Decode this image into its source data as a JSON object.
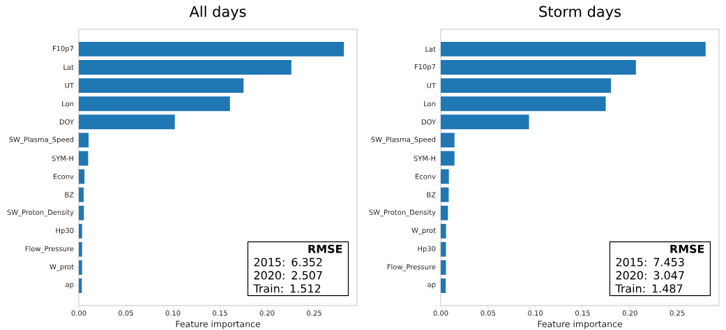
{
  "chart_data": [
    {
      "type": "bar",
      "orientation": "horizontal",
      "title": "All days",
      "xlabel": "Feature importance",
      "color": "#1f77b4",
      "categories": [
        "F10p7",
        "Lat",
        "UT",
        "Lon",
        "DOY",
        "SW_Plasma_Speed",
        "SYM-H",
        "Econv",
        "BZ",
        "SW_Proton_Density",
        "Hp30",
        "Flow_Pressure",
        "W_prot",
        "ap"
      ],
      "values": [
        0.2816,
        0.2258,
        0.175,
        0.1606,
        0.102,
        0.0104,
        0.0099,
        0.006,
        0.0052,
        0.0054,
        0.0035,
        0.0035,
        0.0035,
        0.0032
      ],
      "xlim": [
        0,
        0.2956
      ],
      "xticks": [
        {
          "value": 0,
          "label": "0.00"
        },
        {
          "value": 0.05,
          "label": "0.05"
        },
        {
          "value": 0.1,
          "label": "0.10"
        },
        {
          "value": 0.15,
          "label": "0.15"
        },
        {
          "value": 0.2,
          "label": "0.20"
        },
        {
          "value": 0.25,
          "label": "0.25"
        }
      ],
      "annotations": [
        "RMSE",
        "2015:   6.352",
        "2020:   2.507",
        "Train:   1.512"
      ]
    },
    {
      "type": "bar",
      "orientation": "horizontal",
      "title": "Storm days",
      "xlabel": "Feature importance",
      "color": "#1f77b4",
      "categories": [
        "Lat",
        "F10p7",
        "UT",
        "Lon",
        "DOY",
        "SW_Plasma_Speed",
        "SYM-H",
        "Econv",
        "BZ",
        "SW_Proton_Density",
        "W_prot",
        "Hp30",
        "Flow_Pressure",
        "ap"
      ],
      "values": [
        0.28,
        0.2063,
        0.18,
        0.1744,
        0.0933,
        0.0145,
        0.0145,
        0.0086,
        0.0084,
        0.0076,
        0.0056,
        0.0055,
        0.0055,
        0.0052
      ],
      "xlim": [
        0,
        0.2942
      ],
      "xticks": [
        {
          "value": 0,
          "label": "0.00"
        },
        {
          "value": 0.05,
          "label": "0.05"
        },
        {
          "value": 0.1,
          "label": "0.10"
        },
        {
          "value": 0.15,
          "label": "0.15"
        },
        {
          "value": 0.2,
          "label": "0.20"
        },
        {
          "value": 0.25,
          "label": "0.25"
        }
      ],
      "annotations": [
        "RMSE",
        "2015:   7.453",
        "2020:   3.047",
        "Train:   1.487"
      ]
    }
  ]
}
